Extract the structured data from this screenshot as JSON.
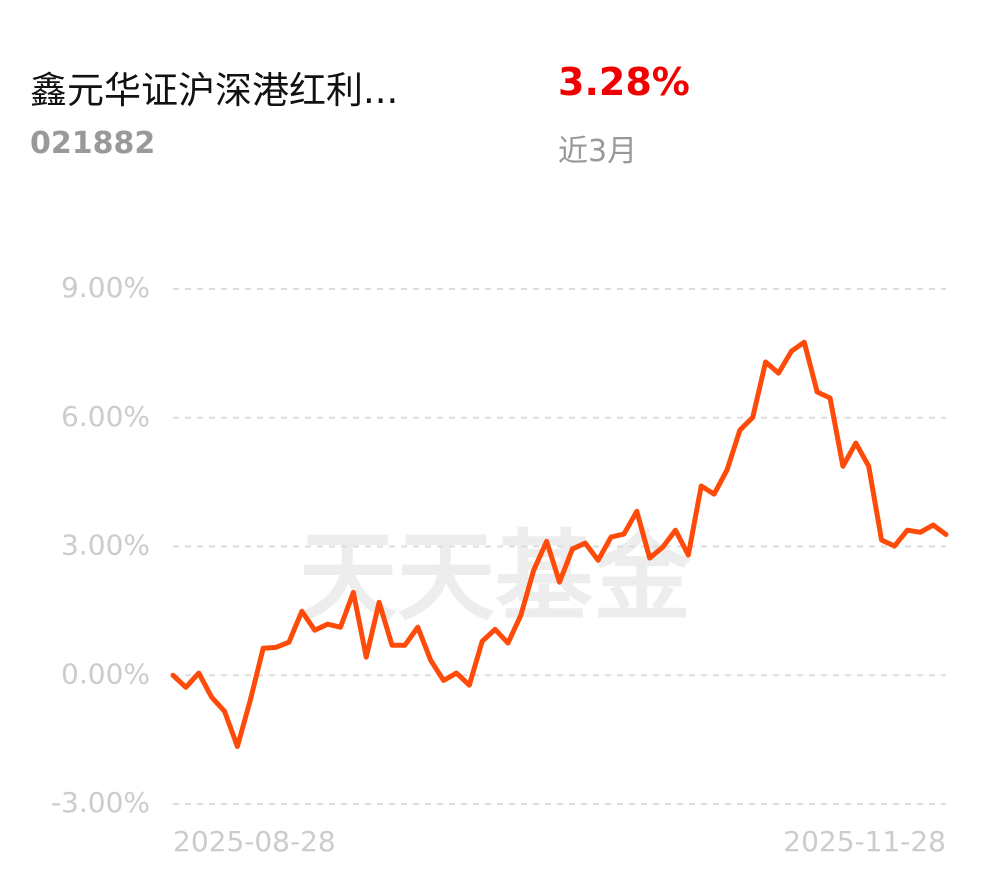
{
  "header": {
    "title": "鑫元华证沪深港红利...",
    "code": "021882",
    "return": "3.28%",
    "period": "近3月"
  },
  "chart_data": {
    "type": "line",
    "watermark": "天天基金",
    "categories": [
      "2025-08-28",
      null,
      null,
      null,
      null,
      null,
      null,
      null,
      null,
      null,
      null,
      null,
      null,
      null,
      null,
      null,
      null,
      null,
      null,
      null,
      null,
      null,
      null,
      null,
      null,
      null,
      null,
      null,
      null,
      null,
      null,
      null,
      null,
      null,
      null,
      null,
      null,
      null,
      null,
      null,
      null,
      null,
      null,
      null,
      null,
      null,
      null,
      null,
      null,
      null,
      null,
      null,
      null,
      null,
      null,
      null,
      null,
      null,
      null,
      null,
      "2025-11-28"
    ],
    "series": [
      {
        "name": "鑫元华证沪深港红利...",
        "color": "#ff4b0a",
        "values": [
          0.0,
          -0.28,
          0.05,
          -0.51,
          -0.84,
          -1.66,
          -0.58,
          0.63,
          0.65,
          0.77,
          1.49,
          1.05,
          1.19,
          1.12,
          1.93,
          0.42,
          1.7,
          0.7,
          0.7,
          1.12,
          0.35,
          -0.12,
          0.05,
          -0.23,
          0.79,
          1.07,
          0.75,
          1.4,
          2.45,
          3.12,
          2.17,
          2.94,
          3.08,
          2.68,
          3.22,
          3.29,
          3.82,
          2.73,
          2.98,
          3.38,
          2.8,
          4.41,
          4.22,
          4.78,
          5.71,
          6.01,
          7.3,
          7.04,
          7.55,
          7.76,
          6.6,
          6.46,
          4.87,
          5.41,
          4.87,
          3.15,
          3.01,
          3.38,
          3.33,
          3.5,
          3.28
        ]
      }
    ],
    "ylim": [
      -3,
      9
    ],
    "yticks": [
      {
        "value": -3,
        "label": "-3.00%"
      },
      {
        "value": 0,
        "label": "0.00%"
      },
      {
        "value": 3,
        "label": "3.00%"
      },
      {
        "value": 6,
        "label": "6.00%"
      },
      {
        "value": 9,
        "label": "9.00%"
      }
    ],
    "grid": true
  }
}
